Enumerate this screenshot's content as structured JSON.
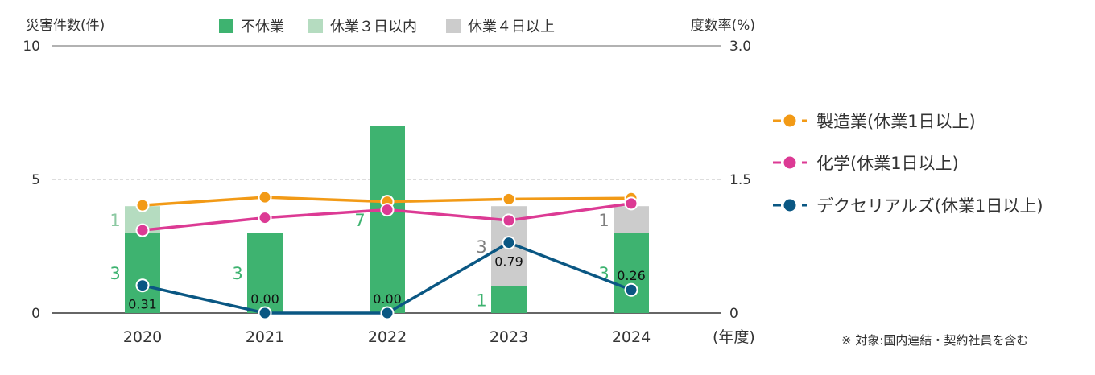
{
  "chart_data": {
    "type": "bar",
    "left_axis_title": "災害件数(件)",
    "right_axis_title": "度数率(%)",
    "x_unit": "(年度)",
    "note": "※ 対象:国内連結・契約社員を含む",
    "categories": [
      "2020",
      "2021",
      "2022",
      "2023",
      "2024"
    ],
    "left_axis": {
      "min": 0,
      "max": 10,
      "ticks": [
        "0",
        "5",
        "10"
      ]
    },
    "right_axis": {
      "min": 0,
      "max": 3.0,
      "ticks": [
        "0",
        "1.5",
        "3.0"
      ]
    },
    "bar_series": [
      {
        "name": "不休業",
        "color": "#3eb370",
        "label_color": "#3eb370",
        "values": [
          3,
          3,
          7,
          1,
          3
        ]
      },
      {
        "name": "休業３日以内",
        "color": "#b5dcc0",
        "label_color": "#8cc9a2",
        "values": [
          1,
          0,
          0,
          0,
          0
        ]
      },
      {
        "name": "休業４日以上",
        "color": "#cccccc",
        "label_color": "#7f7f7f",
        "values": [
          0,
          0,
          0,
          3,
          1
        ]
      }
    ],
    "line_series": [
      {
        "name": "製造業(休業1日以上)",
        "color": "#f29a16",
        "values": [
          1.21,
          1.3,
          1.25,
          1.28,
          1.29
        ]
      },
      {
        "name": "化学(休業1日以上)",
        "color": "#dc3a94",
        "values": [
          0.93,
          1.07,
          1.16,
          1.04,
          1.23
        ]
      },
      {
        "name": "デクセリアルズ(休業1日以上)",
        "color": "#0a5783",
        "values": [
          0.31,
          0.0,
          0.0,
          0.79,
          0.26
        ],
        "labels": [
          "0.31",
          "0.00",
          "0.00",
          "0.79",
          "0.26"
        ]
      }
    ],
    "legend_top_position": "top",
    "legend_lines_position": "right",
    "grid": true
  }
}
